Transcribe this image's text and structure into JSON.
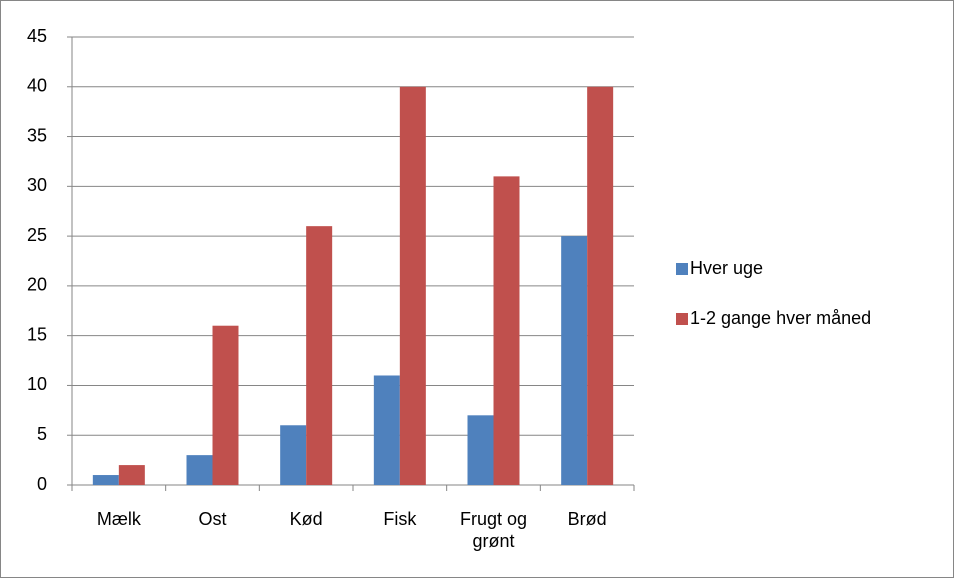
{
  "chart_data": {
    "type": "bar",
    "categories": [
      "Mælk",
      "Ost",
      "Kød",
      "Fisk",
      "Frugt og grønt",
      "Brød"
    ],
    "series": [
      {
        "name": "Hver uge",
        "color": "#4f81bd",
        "values": [
          1,
          3,
          6,
          11,
          7,
          25
        ]
      },
      {
        "name": "1-2 gange hver måned",
        "color": "#c0504d",
        "values": [
          2,
          16,
          26,
          40,
          31,
          40
        ]
      }
    ],
    "ylim": [
      0,
      45
    ],
    "yticks": [
      0,
      5,
      10,
      15,
      20,
      25,
      30,
      35,
      40,
      45
    ],
    "grid": true,
    "legend": "right"
  }
}
